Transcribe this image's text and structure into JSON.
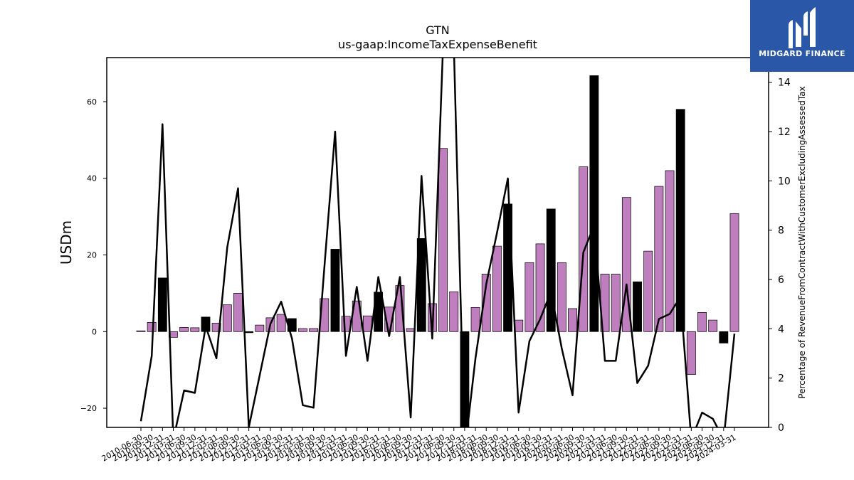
{
  "chart_data": {
    "type": "bar+line",
    "title": "GTN",
    "subtitle": "us-gaap:IncomeTaxExpenseBenefit",
    "ylabel": "USDm",
    "y2label": "Percentage of RevenueFromContractWithCustomerExcludingAssessedTax",
    "ylim": [
      -25,
      71.5
    ],
    "y2lim": [
      0,
      15
    ],
    "yticks": [
      -20,
      0,
      20,
      40,
      60
    ],
    "y2ticks": [
      0,
      2,
      4,
      6,
      8,
      10,
      12,
      14
    ],
    "categories": [
      "2010-06-30",
      "2010-09-30",
      "2010-12-31",
      "2011-03-31",
      "2011-06-30",
      "2011-09-30",
      "2011-12-31",
      "2012-03-31",
      "2012-06-30",
      "2012-09-30",
      "2012-12-31",
      "2013-03-31",
      "2013-06-30",
      "2013-09-30",
      "2013-12-31",
      "2014-03-31",
      "2014-06-30",
      "2014-09-30",
      "2014-12-31",
      "2015-03-31",
      "2015-06-30",
      "2015-09-30",
      "2015-12-31",
      "2016-03-31",
      "2016-06-30",
      "2016-09-30",
      "2016-12-31",
      "2017-03-31",
      "2017-06-30",
      "2017-09-30",
      "2017-12-31",
      "2018-03-31",
      "2018-06-30",
      "2018-09-30",
      "2018-12-31",
      "2019-03-31",
      "2019-06-30",
      "2019-09-30",
      "2019-12-31",
      "2020-03-31",
      "2020-06-30",
      "2020-09-30",
      "2020-12-31",
      "2021-03-31",
      "2021-06-30",
      "2021-09-30",
      "2021-12-31",
      "2022-03-31",
      "2022-06-30",
      "2022-09-30",
      "2022-12-31",
      "2023-03-31",
      "2023-06-30",
      "2023-09-30",
      "2023-12-31",
      "2024-03-31"
    ],
    "tick_labels": [
      "2010-06-30",
      "2010-09-30",
      "2010-12-31",
      "2011-03-31",
      "2011-06-30",
      "2011-09-30",
      "2011-12-31",
      "2012-03-31",
      "2012-06-30",
      "2012-09-30",
      "2012-12-31",
      "2013-03-31",
      "2013-06-30",
      "2013-09-30",
      "2013-12-31",
      "2014-03-31",
      "2014-06-30",
      "2014-09-30",
      "2014-12-31",
      "2015-03-31",
      "2015-06-30",
      "2015-09-30",
      "2015-12-31",
      "2016-03-31",
      "2016-06-30",
      "2016-09-30",
      "2016-12-31",
      "2017-03-31",
      "2017-06-30",
      "2017-09-30",
      "2017-12-31",
      "2018-03-31",
      "2018-06-30",
      "2018-09-30",
      "2018-12-31",
      "2019-03-31",
      "2019-06-30",
      "2019-09-30",
      "2019-12-31",
      "2020-03-31",
      "2020-06-30",
      "2020-09-30",
      "2020-12-31",
      "2021-03-31",
      "2021-06-30",
      "2021-09-30",
      "2021-12-31",
      "2022-03-31",
      "2022-06-30",
      "2022-09-30",
      "2022-12-31",
      "2023-03-31",
      "2023-06-30",
      "2023-09-30",
      "2023-12-31",
      "2024-03-31"
    ],
    "bars": {
      "values": [
        0.2,
        2.4,
        14.0,
        -1.5,
        1.1,
        1.0,
        3.8,
        2.2,
        7.0,
        10.0,
        -0.3,
        1.7,
        3.6,
        4.5,
        3.4,
        0.8,
        0.8,
        8.6,
        21.5,
        4.0,
        8.0,
        4.1,
        10.3,
        6.4,
        12.0,
        0.8,
        24.3,
        7.3,
        47.8,
        10.4,
        -25.0,
        6.3,
        15.0,
        22.3,
        33.3,
        3.0,
        18.0,
        22.9,
        32.0,
        18.0,
        6.0,
        43.0,
        66.8,
        15.0,
        15.0,
        35.0,
        13.0,
        21.0,
        37.9,
        42.0,
        58.0,
        -11.2,
        5.0,
        3.0,
        -3.0,
        30.8
      ],
      "highlight": [
        false,
        false,
        true,
        false,
        false,
        false,
        true,
        false,
        false,
        false,
        true,
        false,
        false,
        false,
        true,
        false,
        false,
        false,
        true,
        false,
        false,
        false,
        true,
        false,
        false,
        false,
        true,
        false,
        false,
        false,
        true,
        false,
        false,
        false,
        true,
        false,
        false,
        false,
        true,
        false,
        false,
        false,
        true,
        false,
        false,
        false,
        true,
        false,
        false,
        false,
        true,
        false,
        false,
        false,
        true,
        false
      ],
      "color": "#bf7fbf",
      "highlight_color": "#000000"
    },
    "line": {
      "values": [
        0.25,
        2.9,
        12.3,
        -0.5,
        1.5,
        1.4,
        4.1,
        2.8,
        7.3,
        9.7,
        0.0,
        2.1,
        4.2,
        5.1,
        3.6,
        0.9,
        0.8,
        6.5,
        12.0,
        2.9,
        5.7,
        2.7,
        6.1,
        3.7,
        6.1,
        0.4,
        10.2,
        3.6,
        15.5,
        15.5,
        -1.0,
        2.8,
        5.8,
        7.9,
        10.1,
        0.6,
        3.5,
        4.4,
        5.5,
        3.2,
        1.3,
        7.1,
        8.2,
        2.7,
        2.7,
        5.8,
        1.8,
        2.5,
        4.4,
        4.6,
        5.3,
        -0.5,
        0.6,
        0.35,
        -0.5,
        3.8
      ],
      "color": "#000000"
    },
    "grid": false,
    "legend": "none"
  },
  "logo": {
    "text": "MIDGARD FINANCE",
    "background": "#2a57a8"
  }
}
